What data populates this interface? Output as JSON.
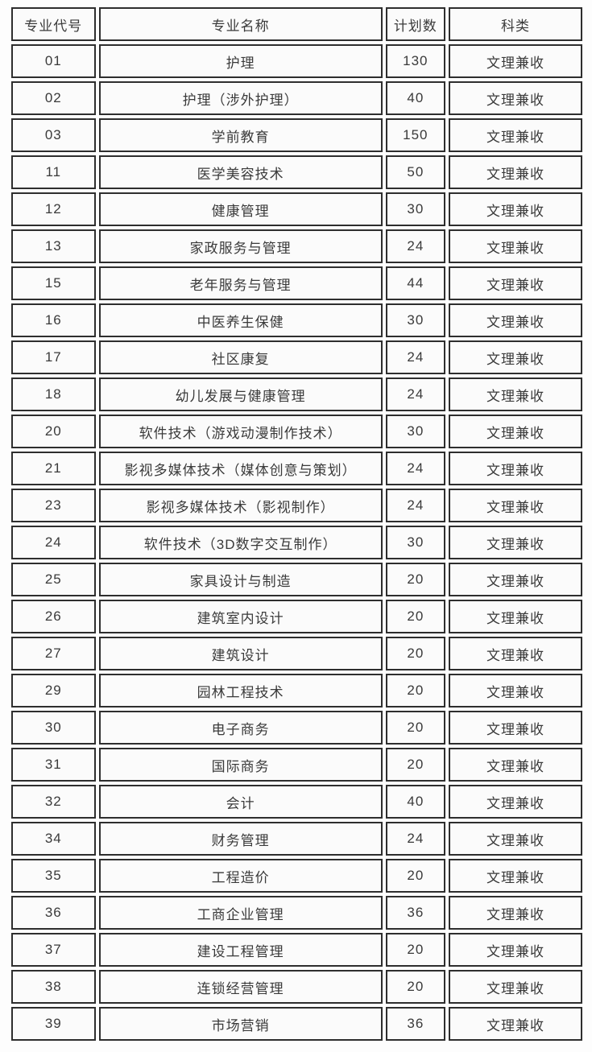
{
  "colors": {
    "border": "#2e2e2e",
    "cell_bg": "#fbfbfb",
    "text": "#3a3a3a",
    "page_bg": "#fdfdfd"
  },
  "table": {
    "headers": [
      "专业代号",
      "专业名称",
      "计划数",
      "科类"
    ],
    "rows": [
      {
        "code": "01",
        "name": "护理",
        "plan": "130",
        "category": "文理兼收"
      },
      {
        "code": "02",
        "name": "护理（涉外护理）",
        "plan": "40",
        "category": "文理兼收"
      },
      {
        "code": "03",
        "name": "学前教育",
        "plan": "150",
        "category": "文理兼收"
      },
      {
        "code": "11",
        "name": "医学美容技术",
        "plan": "50",
        "category": "文理兼收"
      },
      {
        "code": "12",
        "name": "健康管理",
        "plan": "30",
        "category": "文理兼收"
      },
      {
        "code": "13",
        "name": "家政服务与管理",
        "plan": "24",
        "category": "文理兼收"
      },
      {
        "code": "15",
        "name": "老年服务与管理",
        "plan": "44",
        "category": "文理兼收"
      },
      {
        "code": "16",
        "name": "中医养生保健",
        "plan": "30",
        "category": "文理兼收"
      },
      {
        "code": "17",
        "name": "社区康复",
        "plan": "24",
        "category": "文理兼收"
      },
      {
        "code": "18",
        "name": "幼儿发展与健康管理",
        "plan": "24",
        "category": "文理兼收"
      },
      {
        "code": "20",
        "name": "软件技术（游戏动漫制作技术）",
        "plan": "30",
        "category": "文理兼收"
      },
      {
        "code": "21",
        "name": "影视多媒体技术（媒体创意与策划）",
        "plan": "24",
        "category": "文理兼收"
      },
      {
        "code": "23",
        "name": "影视多媒体技术（影视制作）",
        "plan": "24",
        "category": "文理兼收"
      },
      {
        "code": "24",
        "name": "软件技术（3D数字交互制作）",
        "plan": "30",
        "category": "文理兼收"
      },
      {
        "code": "25",
        "name": "家具设计与制造",
        "plan": "20",
        "category": "文理兼收"
      },
      {
        "code": "26",
        "name": "建筑室内设计",
        "plan": "20",
        "category": "文理兼收"
      },
      {
        "code": "27",
        "name": "建筑设计",
        "plan": "20",
        "category": "文理兼收"
      },
      {
        "code": "29",
        "name": "园林工程技术",
        "plan": "20",
        "category": "文理兼收"
      },
      {
        "code": "30",
        "name": "电子商务",
        "plan": "20",
        "category": "文理兼收"
      },
      {
        "code": "31",
        "name": "国际商务",
        "plan": "20",
        "category": "文理兼收"
      },
      {
        "code": "32",
        "name": "会计",
        "plan": "40",
        "category": "文理兼收"
      },
      {
        "code": "34",
        "name": "财务管理",
        "plan": "24",
        "category": "文理兼收"
      },
      {
        "code": "35",
        "name": "工程造价",
        "plan": "20",
        "category": "文理兼收"
      },
      {
        "code": "36",
        "name": "工商企业管理",
        "plan": "36",
        "category": "文理兼收"
      },
      {
        "code": "37",
        "name": "建设工程管理",
        "plan": "20",
        "category": "文理兼收"
      },
      {
        "code": "38",
        "name": "连锁经营管理",
        "plan": "20",
        "category": "文理兼收"
      },
      {
        "code": "39",
        "name": "市场营销",
        "plan": "36",
        "category": "文理兼收"
      }
    ]
  }
}
